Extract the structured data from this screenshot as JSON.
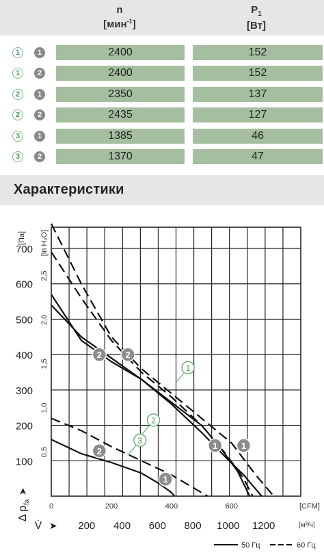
{
  "table": {
    "headers": {
      "n_label": "n",
      "n_unit_prefix": "[мин",
      "n_unit_sup": "-1",
      "n_unit_suffix": "]",
      "p_label": "P",
      "p_sub": "1",
      "p_unit": "[Вт]"
    },
    "rows": [
      {
        "variant": "1",
        "version": "1",
        "n": "2400",
        "p": "152"
      },
      {
        "variant": "1",
        "version": "2",
        "n": "2400",
        "p": "152"
      },
      {
        "variant": "2",
        "version": "1",
        "n": "2350",
        "p": "137"
      },
      {
        "variant": "2",
        "version": "2",
        "n": "2435",
        "p": "127"
      },
      {
        "variant": "3",
        "version": "1",
        "n": "1385",
        "p": "46"
      },
      {
        "variant": "3",
        "version": "2",
        "n": "1370",
        "p": "47"
      }
    ]
  },
  "section_title": "Характеристики",
  "chart_data": {
    "type": "line",
    "y_unit_pa": "[Па]",
    "y_unit_inh2o": "[in H₂O]",
    "y_axis_label": "Δ p",
    "y_axis_sub": "fa",
    "x_unit_cfm": "[CFM]",
    "x_unit_m3h": "[м³/ч]",
    "x_axis_symbol": "V̇",
    "pa_ticks": [
      "100",
      "200",
      "300",
      "400",
      "500",
      "600",
      "700"
    ],
    "inh2o_ticks": [
      "0,5",
      "1,0",
      "1,5",
      "2,0",
      "2,5"
    ],
    "cfm_ticks": [
      "0",
      "200",
      "400",
      "600"
    ],
    "m3h_ticks": [
      "200",
      "400",
      "600",
      "800",
      "1000",
      "1200"
    ],
    "xlim_cfm": [
      0,
      830
    ],
    "ylim_pa": [
      0,
      760
    ],
    "legend": {
      "solid": "50 Гц",
      "dashed": "60 Гц"
    },
    "series": [
      {
        "curve": "1",
        "frequency": "50 Гц",
        "points": [
          [
            0,
            540
          ],
          [
            100,
            450
          ],
          [
            200,
            390
          ],
          [
            300,
            330
          ],
          [
            400,
            260
          ],
          [
            500,
            180
          ],
          [
            580,
            110
          ],
          [
            640,
            60
          ],
          [
            700,
            0
          ]
        ]
      },
      {
        "curve": "1",
        "frequency": "60 Гц",
        "points": [
          [
            0,
            770
          ],
          [
            100,
            600
          ],
          [
            200,
            450
          ],
          [
            300,
            360
          ],
          [
            400,
            290
          ],
          [
            500,
            220
          ],
          [
            600,
            150
          ],
          [
            680,
            60
          ],
          [
            740,
            0
          ]
        ]
      },
      {
        "curve": "2",
        "frequency": "50 Гц",
        "points": [
          [
            0,
            570
          ],
          [
            100,
            440
          ],
          [
            200,
            380
          ],
          [
            300,
            330
          ],
          [
            400,
            265
          ],
          [
            500,
            200
          ],
          [
            560,
            140
          ],
          [
            620,
            70
          ],
          [
            660,
            0
          ]
        ]
      },
      {
        "curve": "2",
        "frequency": "60 Гц",
        "points": [
          [
            0,
            690
          ],
          [
            100,
            560
          ],
          [
            200,
            440
          ],
          [
            300,
            350
          ],
          [
            400,
            280
          ],
          [
            500,
            200
          ],
          [
            580,
            120
          ],
          [
            640,
            50
          ],
          [
            670,
            0
          ]
        ]
      },
      {
        "curve": "3",
        "frequency": "50 Гц",
        "points": [
          [
            0,
            160
          ],
          [
            100,
            120
          ],
          [
            200,
            95
          ],
          [
            300,
            65
          ],
          [
            360,
            35
          ],
          [
            400,
            10
          ],
          [
            410,
            0
          ]
        ]
      },
      {
        "curve": "3",
        "frequency": "60 Гц",
        "points": [
          [
            0,
            220
          ],
          [
            100,
            185
          ],
          [
            200,
            140
          ],
          [
            300,
            100
          ],
          [
            400,
            60
          ],
          [
            460,
            30
          ],
          [
            520,
            0
          ]
        ]
      }
    ],
    "markers": [
      {
        "label": "2",
        "style": "filled",
        "cfm": 160,
        "pa": 400
      },
      {
        "label": "2",
        "style": "filled",
        "cfm": 255,
        "pa": 400
      },
      {
        "label": "1",
        "style": "filled",
        "cfm": 545,
        "pa": 143
      },
      {
        "label": "1",
        "style": "filled",
        "cfm": 640,
        "pa": 143
      },
      {
        "label": "2",
        "style": "filled",
        "cfm": 160,
        "pa": 128
      },
      {
        "label": "1",
        "style": "filled",
        "cfm": 380,
        "pa": 48
      },
      {
        "label": "1",
        "style": "outline",
        "cfm": 455,
        "pa": 363
      },
      {
        "label": "2",
        "style": "outline",
        "cfm": 340,
        "pa": 215
      },
      {
        "label": "3",
        "style": "outline",
        "cfm": 295,
        "pa": 158
      }
    ]
  }
}
